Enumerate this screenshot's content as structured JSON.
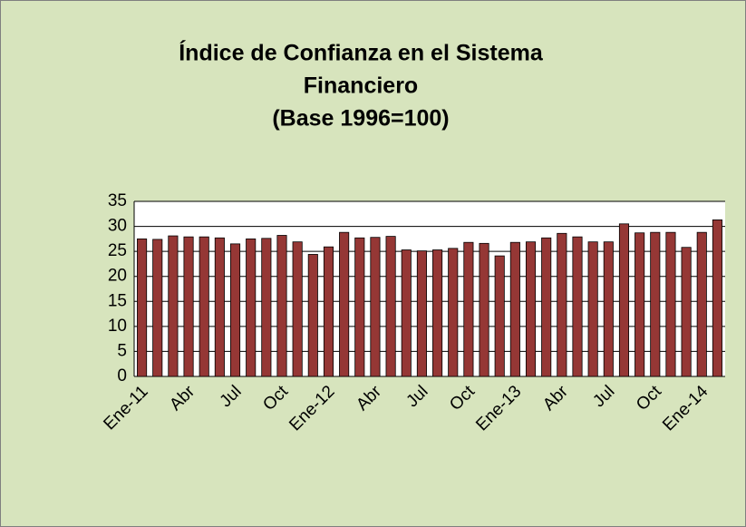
{
  "chart_data": {
    "type": "bar",
    "title": [
      "Índice de Confianza en el Sistema",
      "Financiero",
      "(Base 1996=100)"
    ],
    "categories": [
      "Ene-11",
      null,
      null,
      "Abr",
      null,
      null,
      "Jul",
      null,
      null,
      "Oct",
      null,
      null,
      "Ene-12",
      null,
      null,
      "Abr",
      null,
      null,
      "Jul",
      null,
      null,
      "Oct",
      null,
      null,
      "Ene-13",
      null,
      null,
      "Abr",
      null,
      null,
      "Jul",
      null,
      null,
      "Oct",
      null,
      null,
      "Ene-14",
      null
    ],
    "values": [
      27.5,
      27.4,
      28.1,
      27.9,
      27.9,
      27.7,
      26.5,
      27.5,
      27.6,
      28.2,
      26.9,
      24.4,
      25.9,
      28.8,
      27.7,
      27.8,
      28.0,
      25.3,
      25.1,
      25.3,
      25.6,
      26.8,
      26.6,
      24.1,
      26.8,
      26.9,
      27.7,
      28.6,
      27.9,
      26.9,
      26.9,
      30.5,
      28.7,
      28.8,
      28.8,
      25.8,
      28.8,
      31.3
    ],
    "color": "#953735",
    "background": "#d7e4bd",
    "ylim": [
      0,
      35
    ],
    "yticks": [
      0,
      5,
      10,
      15,
      20,
      25,
      30,
      35
    ],
    "grid": true
  }
}
